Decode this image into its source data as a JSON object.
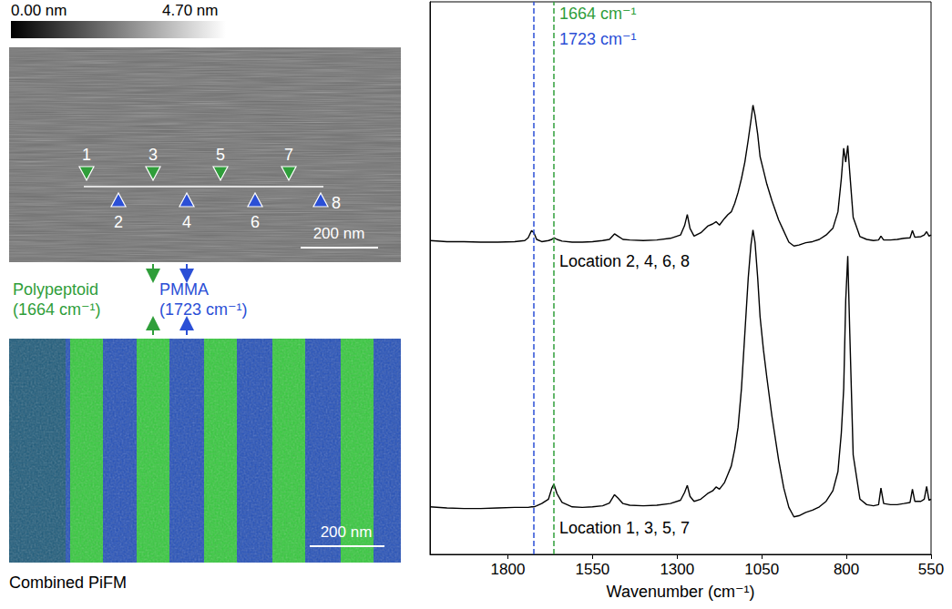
{
  "chart_data": {
    "type": "line",
    "x_label": "Wavenumber (cm⁻¹)",
    "xlim": [
      2030,
      550
    ],
    "xticks": [
      1800,
      1550,
      1300,
      1050,
      800,
      550
    ],
    "ylim": [
      0,
      100
    ],
    "tick_labels": "x",
    "grid": false,
    "x": [
      2030,
      1980,
      1930,
      1880,
      1830,
      1780,
      1750,
      1740,
      1730,
      1723,
      1715,
      1700,
      1680,
      1670,
      1664,
      1655,
      1640,
      1610,
      1580,
      1550,
      1520,
      1500,
      1485,
      1475,
      1460,
      1440,
      1400,
      1360,
      1320,
      1290,
      1278,
      1270,
      1262,
      1250,
      1230,
      1210,
      1195,
      1185,
      1175,
      1160,
      1150,
      1140,
      1130,
      1120,
      1110,
      1100,
      1090,
      1082,
      1076,
      1070,
      1062,
      1055,
      1045,
      1035,
      1020,
      1000,
      985,
      970,
      955,
      940,
      920,
      900,
      880,
      860,
      840,
      825,
      815,
      808,
      802,
      796,
      790,
      780,
      760,
      740,
      720,
      705,
      698,
      690,
      670,
      650,
      630,
      612,
      605,
      598,
      580,
      570,
      563,
      556,
      550
    ],
    "series": [
      {
        "name": "Location 2, 4, 6, 8",
        "color": "#000000",
        "values": [
          56.8,
          56.6,
          56.6,
          56.5,
          56.5,
          56.6,
          56.8,
          57.3,
          58.6,
          58.2,
          57.0,
          56.6,
          56.8,
          57.0,
          57.3,
          57.0,
          56.7,
          56.5,
          56.5,
          56.6,
          56.8,
          57.0,
          58.0,
          57.6,
          57.0,
          56.9,
          56.8,
          56.9,
          57.2,
          57.8,
          59.5,
          61.5,
          59.0,
          57.6,
          58.2,
          59.4,
          59.8,
          60.2,
          59.6,
          60.8,
          61.5,
          62.0,
          63.5,
          65.5,
          68.0,
          71.0,
          75.0,
          78.5,
          81.3,
          79.5,
          76.0,
          72.0,
          69.5,
          67.0,
          64.0,
          60.5,
          58.5,
          56.5,
          55.8,
          56.0,
          56.4,
          56.6,
          57.0,
          57.8,
          59.0,
          62.0,
          68.0,
          73.5,
          71.0,
          74.0,
          69.0,
          61.0,
          57.5,
          57.0,
          56.8,
          56.9,
          57.6,
          56.9,
          56.9,
          57.0,
          57.2,
          57.3,
          58.6,
          57.4,
          57.5,
          57.8,
          58.4,
          57.6,
          57.8
        ]
      },
      {
        "name": "Location 1, 3, 5, 7",
        "color": "#000000",
        "values": [
          8.6,
          8.4,
          8.3,
          8.3,
          8.4,
          8.5,
          8.5,
          8.5,
          8.6,
          8.6,
          8.8,
          9.2,
          10.0,
          12.0,
          12.7,
          11.0,
          9.4,
          8.6,
          8.5,
          8.6,
          8.8,
          9.3,
          10.8,
          10.2,
          9.2,
          8.9,
          8.8,
          8.9,
          9.2,
          9.8,
          11.2,
          12.5,
          10.5,
          9.6,
          10.0,
          11.0,
          11.5,
          12.2,
          11.8,
          13.0,
          14.5,
          16.0,
          19.0,
          23.0,
          30.0,
          40.0,
          50.0,
          56.0,
          58.7,
          56.5,
          50.0,
          43.0,
          37.0,
          32.0,
          25.0,
          17.0,
          12.0,
          8.5,
          6.8,
          7.0,
          7.6,
          8.0,
          8.6,
          9.6,
          11.5,
          15.0,
          22.0,
          30.0,
          46.0,
          54.0,
          40.0,
          18.0,
          10.0,
          9.0,
          8.8,
          9.0,
          12.0,
          9.2,
          9.0,
          9.0,
          9.2,
          9.4,
          11.8,
          9.6,
          9.6,
          10.0,
          12.3,
          9.8,
          10.0
        ]
      }
    ],
    "vlines": [
      {
        "x": 1664,
        "label": "1664 cm⁻¹",
        "color": "#2f9e3a"
      },
      {
        "x": 1723,
        "label": "1723 cm⁻¹",
        "color": "#2b4fd6"
      }
    ]
  },
  "afm_panel": {
    "colorbar_labels": [
      "0.00 nm",
      "4.70 nm"
    ],
    "markers_down": [
      "1",
      "3",
      "5",
      "7"
    ],
    "markers_up": [
      "2",
      "4",
      "6",
      "8"
    ],
    "scale_bar": "200 nm"
  },
  "components": [
    {
      "name": "Polypeptoid",
      "detail": "(1664 cm⁻¹)",
      "color": "#2f9e3a"
    },
    {
      "name": "PMMA",
      "detail": "(1723 cm⁻¹)",
      "color": "#2b4fd6"
    }
  ],
  "pifm_panel": {
    "title": "Combined PiFM",
    "scale_bar": "200 nm"
  }
}
